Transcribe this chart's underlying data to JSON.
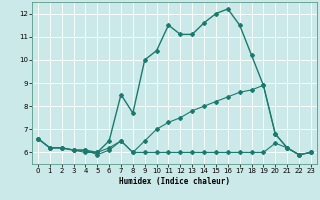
{
  "xlabel": "Humidex (Indice chaleur)",
  "xlim": [
    -0.5,
    23.5
  ],
  "ylim": [
    5.5,
    12.5
  ],
  "yticks": [
    6,
    7,
    8,
    9,
    10,
    11,
    12
  ],
  "xticks": [
    0,
    1,
    2,
    3,
    4,
    5,
    6,
    7,
    8,
    9,
    10,
    11,
    12,
    13,
    14,
    15,
    16,
    17,
    18,
    19,
    20,
    21,
    22,
    23
  ],
  "bg_color": "#cce9e9",
  "grid_color": "#b8d8d8",
  "line_color": "#1a7a6e",
  "line1_x": [
    0,
    1,
    2,
    3,
    4,
    5,
    6,
    7,
    8,
    9,
    10,
    11,
    12,
    13,
    14,
    15,
    16,
    17,
    18,
    19,
    20,
    21,
    22,
    23
  ],
  "line1_y": [
    6.6,
    6.2,
    6.2,
    6.1,
    6.1,
    6.0,
    6.5,
    8.5,
    7.7,
    10.0,
    10.4,
    11.5,
    11.1,
    11.1,
    11.6,
    12.0,
    12.2,
    11.5,
    10.2,
    8.9,
    6.8,
    6.2,
    5.9,
    6.0
  ],
  "line2_x": [
    0,
    1,
    2,
    3,
    4,
    5,
    6,
    7,
    8,
    9,
    10,
    11,
    12,
    13,
    14,
    15,
    16,
    17,
    18,
    19,
    20,
    21,
    22,
    23
  ],
  "line2_y": [
    6.6,
    6.2,
    6.2,
    6.1,
    6.0,
    6.0,
    6.2,
    6.5,
    6.0,
    6.5,
    7.0,
    7.3,
    7.5,
    7.8,
    8.0,
    8.2,
    8.4,
    8.6,
    8.7,
    8.9,
    6.8,
    6.2,
    5.9,
    6.0
  ],
  "line3_x": [
    0,
    1,
    2,
    3,
    4,
    5,
    6,
    7,
    8,
    9,
    10,
    11,
    12,
    13,
    14,
    15,
    16,
    17,
    18,
    19,
    20,
    21,
    22,
    23
  ],
  "line3_y": [
    6.6,
    6.2,
    6.2,
    6.1,
    6.1,
    5.9,
    6.1,
    6.5,
    6.0,
    6.0,
    6.0,
    6.0,
    6.0,
    6.0,
    6.0,
    6.0,
    6.0,
    6.0,
    6.0,
    6.0,
    6.4,
    6.2,
    5.9,
    6.0
  ]
}
